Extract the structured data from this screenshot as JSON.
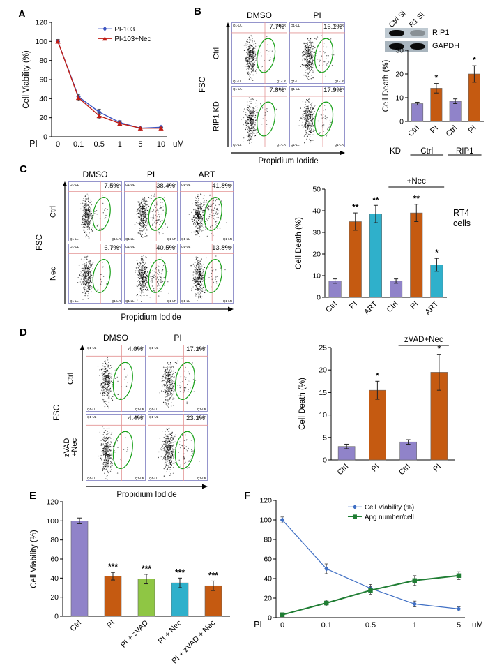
{
  "panelA": {
    "label": "A",
    "chart": {
      "type": "line",
      "ylabel": "Cell Viability (%)",
      "ylim": [
        0,
        120
      ],
      "ytick_step": 20,
      "categories": [
        "0",
        "0.1",
        "0.5",
        "1",
        "5",
        "10"
      ],
      "xlabel_left": "PI",
      "xlabel_right": "uM",
      "series": [
        {
          "name": "PI-103",
          "color": "#3b53c0",
          "marker": "diamond",
          "values": [
            100,
            42,
            26,
            15,
            9,
            10
          ],
          "errors": [
            2,
            3,
            3,
            2,
            1,
            1
          ]
        },
        {
          "name": "PI-103+Nec",
          "color": "#c01d15",
          "marker": "triangle",
          "values": [
            100,
            41,
            22,
            14,
            9,
            9
          ],
          "errors": [
            2,
            3,
            3,
            2,
            1,
            1
          ]
        }
      ]
    }
  },
  "panelB": {
    "label": "B",
    "flow": {
      "col_headers": [
        "DMSO",
        "PI"
      ],
      "row_headers": [
        "Ctrl",
        "RIP1 KD"
      ],
      "xlabel": "Propidium Iodide",
      "ylabel": "FSC",
      "quadrants": [
        "Q1-UL",
        "Q1-UR",
        "Q1-LL",
        "Q1-LR"
      ],
      "plots": [
        {
          "pct": "7.7%"
        },
        {
          "pct": "16.1%"
        },
        {
          "pct": "7.8%"
        },
        {
          "pct": "17.9%"
        }
      ]
    },
    "blot": {
      "lanes": [
        "Ctrl Si",
        "R1 Si"
      ],
      "rows": [
        {
          "label": "RIP1",
          "bands": [
            1,
            0.3
          ]
        },
        {
          "label": "GAPDH",
          "bands": [
            1,
            1
          ]
        }
      ]
    },
    "chart": {
      "type": "bar",
      "ylabel": "Cell Death (%)",
      "ylim": [
        0,
        30
      ],
      "ytick_step": 10,
      "categories": [
        "Ctrl",
        "PI",
        "Ctrl",
        "PI"
      ],
      "values": [
        7.5,
        14,
        8.5,
        20
      ],
      "errors": [
        0.6,
        2,
        1,
        3.5
      ],
      "colors": [
        "#9083c9",
        "#c55a11",
        "#9083c9",
        "#c55a11"
      ],
      "sig": [
        "",
        "*",
        "",
        "*"
      ],
      "bottom_axis": {
        "label": "KD",
        "groups": [
          "Ctrl",
          "RIP1"
        ]
      }
    }
  },
  "panelC": {
    "label": "C",
    "flow": {
      "col_headers": [
        "DMSO",
        "PI",
        "ART"
      ],
      "row_headers": [
        "Ctrl",
        "Nec"
      ],
      "xlabel": "Propidium Iodide",
      "ylabel": "FSC",
      "quadrants": [
        "Q1-UL",
        "Q1-UR",
        "Q1-LL",
        "Q1-LR"
      ],
      "plots": [
        {
          "pct": "7.5%"
        },
        {
          "pct": "38.4%"
        },
        {
          "pct": "41.8%"
        },
        {
          "pct": "6.7%"
        },
        {
          "pct": "40.5%"
        },
        {
          "pct": "13.8%"
        }
      ]
    },
    "chart": {
      "type": "bar",
      "ylabel": "Cell Death (%)",
      "ylim": [
        0,
        50
      ],
      "ytick_step": 10,
      "categories": [
        "Ctrl",
        "PI",
        "ART",
        "Ctrl",
        "PI",
        "ART"
      ],
      "values": [
        7.5,
        35,
        38.5,
        7.5,
        39,
        15
      ],
      "errors": [
        1,
        4,
        4,
        1,
        4,
        3
      ],
      "colors": [
        "#9083c9",
        "#c55a11",
        "#2fb0cb",
        "#9083c9",
        "#c55a11",
        "#2fb0cb"
      ],
      "sig": [
        "",
        "**",
        "**",
        "",
        "**",
        "*"
      ],
      "bracket": {
        "label": "+Nec",
        "start": 3,
        "end": 5
      },
      "side_label": "RT4 cells"
    }
  },
  "panelD": {
    "label": "D",
    "flow": {
      "col_headers": [
        "DMSO",
        "PI"
      ],
      "row_headers": [
        "Ctrl",
        "zVAD\n+Nec"
      ],
      "xlabel": "Propidium Iodide",
      "ylabel": "FSC",
      "quadrants": [
        "Q1-UL",
        "Q1-UR",
        "Q1-LL",
        "Q1-LR"
      ],
      "plots": [
        {
          "pct": "4.0%"
        },
        {
          "pct": "17.1%"
        },
        {
          "pct": "4.4%"
        },
        {
          "pct": "23.1%"
        }
      ]
    },
    "chart": {
      "type": "bar",
      "ylabel": "Cell Death (%)",
      "ylim": [
        0,
        25
      ],
      "ytick_step": 5,
      "categories": [
        "Ctrl",
        "PI",
        "Ctrl",
        "PI"
      ],
      "values": [
        3,
        15.5,
        4,
        19.5
      ],
      "errors": [
        0.5,
        2,
        0.5,
        4
      ],
      "colors": [
        "#9083c9",
        "#c55a11",
        "#9083c9",
        "#c55a11"
      ],
      "sig": [
        "",
        "*",
        "",
        "*"
      ],
      "bracket": {
        "label": "zVAD+Nec",
        "start": 2,
        "end": 3
      }
    }
  },
  "panelE": {
    "label": "E",
    "chart": {
      "type": "bar",
      "ylabel": "Cell Viability (%)",
      "ylim": [
        0,
        120
      ],
      "ytick_step": 20,
      "categories": [
        "Ctrl",
        "PI",
        "PI + zVAD",
        "PI + Nec",
        "PI + zVAD + Nec"
      ],
      "values": [
        100,
        42,
        39,
        35,
        32
      ],
      "errors": [
        3,
        4,
        5,
        5,
        5
      ],
      "colors": [
        "#9083c9",
        "#c55a11",
        "#8fc644",
        "#2fb0cb",
        "#c55a11"
      ],
      "sig": [
        "",
        "***",
        "***",
        "***",
        "***"
      ]
    }
  },
  "panelF": {
    "label": "F",
    "chart": {
      "type": "line",
      "ylim": [
        0,
        120
      ],
      "ytick_step": 20,
      "categories": [
        "0",
        "0.1",
        "0.5",
        "1",
        "5"
      ],
      "xlabel_left": "PI",
      "xlabel_right": "uM",
      "series": [
        {
          "name": "Cell Viability (%)",
          "color": "#3f6fc4",
          "marker": "diamond",
          "width": 1.2,
          "values": [
            100,
            50,
            30,
            14,
            9
          ],
          "errors": [
            3,
            5,
            4,
            3,
            2
          ]
        },
        {
          "name": "Apg number/cell",
          "color": "#1f7d33",
          "marker": "square",
          "width": 2,
          "values": [
            3,
            15,
            28,
            38,
            43
          ],
          "errors": [
            2,
            3,
            4,
            5,
            4
          ]
        }
      ]
    }
  }
}
